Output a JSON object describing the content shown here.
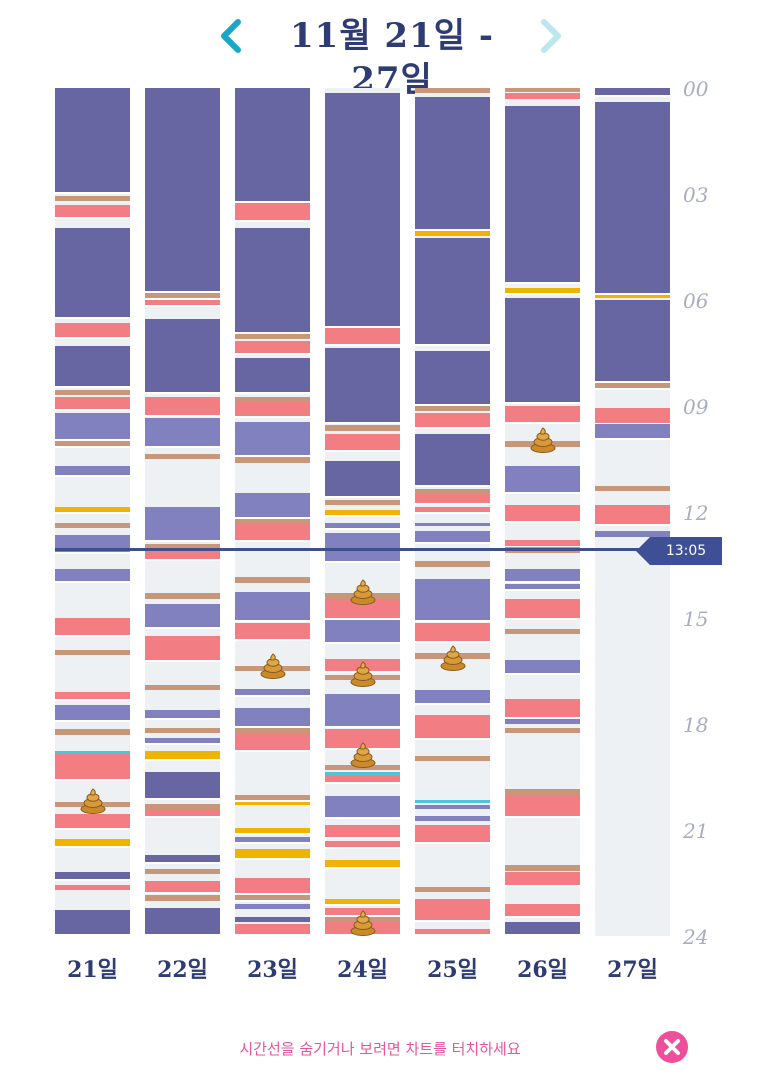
{
  "header": {
    "title": "11월 21일 - 27일",
    "prev_icon": "chevron-left-icon",
    "next_icon": "chevron-right-icon",
    "prev_color": "#19a7c9",
    "next_color": "#bde6ef"
  },
  "colors": {
    "sleep": "#6766a3",
    "light_sleep": "#8281c0",
    "feed": "#f27d82",
    "diaper": "#c8977a",
    "bottle": "#f0b400",
    "bath": "#4fc3d9",
    "empty": "#edf1f4",
    "gap": "#ffffff"
  },
  "hour_labels": [
    "00",
    "03",
    "06",
    "09",
    "12",
    "15",
    "18",
    "21",
    "24"
  ],
  "current_time": "13:05",
  "footer": {
    "hint": "시간선을 숨기거나 보려면 차트를 터치하세요",
    "close_icon": "close-icon"
  },
  "days": [
    {
      "label": "21일",
      "events": [
        [
          "sleep",
          0,
          3
        ],
        [
          "diaper",
          3.05,
          3.2
        ],
        [
          "feed",
          3.3,
          3.7
        ],
        [
          "sleep",
          3.95,
          6.55
        ],
        [
          "feed",
          6.65,
          7.1
        ],
        [
          "sleep",
          7.3,
          8.5
        ],
        [
          "diaper",
          8.55,
          8.7
        ],
        [
          "feed",
          8.75,
          9.15
        ],
        [
          "light_sleep",
          9.2,
          10.0
        ],
        [
          "diaper",
          10.0,
          10.2
        ],
        [
          "light_sleep",
          10.7,
          11.0
        ],
        [
          "bottle",
          11.85,
          12.05
        ],
        [
          "diaper",
          12.3,
          12.45
        ],
        [
          "light_sleep",
          12.65,
          13.2
        ],
        [
          "light_sleep",
          13.6,
          14.0
        ],
        [
          "feed",
          15.0,
          15.55
        ],
        [
          "diaper",
          15.9,
          16.05
        ],
        [
          "feed",
          17.1,
          17.35
        ],
        [
          "light_sleep",
          17.45,
          17.95
        ],
        [
          "diaper",
          18.15,
          18.3
        ],
        [
          "bath",
          18.75,
          18.82
        ],
        [
          "feed",
          18.85,
          19.6
        ],
        [
          "diaper",
          20.2,
          20.35
        ],
        [
          "feed",
          20.55,
          21.0
        ],
        [
          "bottle",
          21.25,
          21.5
        ],
        [
          "sleep",
          22.2,
          22.45
        ],
        [
          "feed",
          22.55,
          22.7
        ],
        [
          "sleep",
          23.25,
          24
        ]
      ],
      "poops": [
        20.2
      ]
    },
    {
      "label": "22일",
      "events": [
        [
          "sleep",
          0,
          5.8
        ],
        [
          "diaper",
          5.8,
          6.0
        ],
        [
          "feed",
          6.0,
          6.2
        ],
        [
          "sleep",
          6.55,
          8.65
        ],
        [
          "feed",
          8.75,
          9.3
        ],
        [
          "light_sleep",
          9.35,
          10.2
        ],
        [
          "diaper",
          10.35,
          10.5
        ],
        [
          "light_sleep",
          11.85,
          12.85
        ],
        [
          "diaper",
          12.9,
          13.1
        ],
        [
          "feed",
          13.1,
          13.4
        ],
        [
          "diaper",
          14.3,
          14.45
        ],
        [
          "light_sleep",
          14.6,
          15.3
        ],
        [
          "feed",
          15.5,
          16.25
        ],
        [
          "diaper",
          16.9,
          17.05
        ],
        [
          "light_sleep",
          17.6,
          17.9
        ],
        [
          "diaper",
          18.1,
          18.25
        ],
        [
          "light_sleep",
          18.4,
          18.6
        ],
        [
          "bottle",
          18.75,
          19.05
        ],
        [
          "sleep",
          19.35,
          20.15
        ],
        [
          "diaper",
          20.25,
          20.4
        ],
        [
          "feed",
          20.4,
          20.65
        ],
        [
          "sleep",
          21.7,
          21.95
        ],
        [
          "diaper",
          22.1,
          22.25
        ],
        [
          "feed",
          22.45,
          22.8
        ],
        [
          "diaper",
          22.85,
          23.0
        ],
        [
          "sleep",
          23.2,
          24
        ]
      ],
      "poops": []
    },
    {
      "label": "23일",
      "events": [
        [
          "sleep",
          0,
          3.25
        ],
        [
          "feed",
          3.25,
          3.8
        ],
        [
          "sleep",
          3.95,
          6.95
        ],
        [
          "diaper",
          6.95,
          7.1
        ],
        [
          "feed",
          7.15,
          7.55
        ],
        [
          "sleep",
          7.65,
          8.65
        ],
        [
          "diaper",
          8.75,
          8.9
        ],
        [
          "feed",
          8.9,
          9.35
        ],
        [
          "light_sleep",
          9.45,
          10.45
        ],
        [
          "diaper",
          10.45,
          10.6
        ],
        [
          "light_sleep",
          11.45,
          12.2
        ],
        [
          "diaper",
          12.2,
          12.35
        ],
        [
          "feed",
          12.35,
          12.85
        ],
        [
          "diaper",
          13.85,
          14.0
        ],
        [
          "light_sleep",
          14.25,
          15.1
        ],
        [
          "feed",
          15.15,
          15.65
        ],
        [
          "diaper",
          16.35,
          16.5
        ],
        [
          "light_sleep",
          17.0,
          17.25
        ],
        [
          "light_sleep",
          17.55,
          18.1
        ],
        [
          "diaper",
          18.1,
          18.25
        ],
        [
          "feed",
          18.25,
          18.8
        ],
        [
          "diaper",
          20.0,
          20.2
        ],
        [
          "bottle",
          20.2,
          20.3
        ],
        [
          "bottle",
          20.95,
          21.15
        ],
        [
          "light_sleep",
          21.2,
          21.4
        ],
        [
          "bottle",
          21.55,
          21.85
        ],
        [
          "feed",
          22.35,
          22.85
        ],
        [
          "diaper",
          22.85,
          23.05
        ],
        [
          "light_sleep",
          23.1,
          23.25
        ],
        [
          "sleep",
          23.45,
          23.6
        ],
        [
          "feed",
          23.65,
          24
        ]
      ],
      "poops": [
        16.4
      ]
    },
    {
      "label": "24일",
      "events": [
        [
          "sleep",
          0.15,
          6.8
        ],
        [
          "feed",
          6.8,
          7.3
        ],
        [
          "sleep",
          7.35,
          9.5
        ],
        [
          "diaper",
          9.55,
          9.7
        ],
        [
          "feed",
          9.8,
          10.3
        ],
        [
          "sleep",
          10.55,
          11.6
        ],
        [
          "diaper",
          11.65,
          11.8
        ],
        [
          "bottle",
          11.95,
          12.15
        ],
        [
          "light_sleep",
          12.3,
          12.5
        ],
        [
          "light_sleep",
          12.6,
          13.45
        ],
        [
          "diaper",
          14.3,
          14.45
        ],
        [
          "feed",
          14.45,
          15.05
        ],
        [
          "light_sleep",
          15.05,
          15.75
        ],
        [
          "feed",
          16.15,
          16.55
        ],
        [
          "diaper",
          16.6,
          16.75
        ],
        [
          "light_sleep",
          17.15,
          18.1
        ],
        [
          "feed",
          18.15,
          18.75
        ],
        [
          "diaper",
          19.15,
          19.3
        ],
        [
          "bath",
          19.35,
          19.45
        ],
        [
          "feed",
          19.45,
          19.7
        ],
        [
          "light_sleep",
          20.05,
          20.7
        ],
        [
          "feed",
          20.85,
          21.25
        ],
        [
          "feed",
          21.3,
          21.55
        ],
        [
          "bottle",
          21.85,
          22.1
        ],
        [
          "bottle",
          22.95,
          23.15
        ],
        [
          "feed",
          23.2,
          23.45
        ],
        [
          "diaper",
          23.45,
          23.6
        ],
        [
          "feed",
          23.6,
          24
        ]
      ],
      "poops": [
        14.3,
        16.6,
        18.9,
        23.65
      ]
    },
    {
      "label": "25일",
      "events": [
        [
          "diaper",
          0,
          0.15
        ],
        [
          "sleep",
          0.25,
          4.05
        ],
        [
          "bottle",
          4.05,
          4.2
        ],
        [
          "sleep",
          4.25,
          7.3
        ],
        [
          "sleep",
          7.45,
          9.0
        ],
        [
          "diaper",
          9.0,
          9.15
        ],
        [
          "feed",
          9.2,
          9.65
        ],
        [
          "sleep",
          9.8,
          11.3
        ],
        [
          "diaper",
          11.35,
          11.5
        ],
        [
          "feed",
          11.5,
          11.8
        ],
        [
          "feed",
          11.85,
          12.05
        ],
        [
          "light_sleep",
          12.3,
          12.4
        ],
        [
          "light_sleep",
          12.55,
          12.9
        ],
        [
          "diaper",
          13.4,
          13.55
        ],
        [
          "light_sleep",
          13.9,
          15.1
        ],
        [
          "feed",
          15.15,
          15.7
        ],
        [
          "diaper",
          16.0,
          16.15
        ],
        [
          "light_sleep",
          17.05,
          17.45
        ],
        [
          "feed",
          17.75,
          18.45
        ],
        [
          "diaper",
          18.9,
          19.05
        ],
        [
          "bath",
          20.15,
          20.25
        ],
        [
          "light_sleep",
          20.3,
          20.4
        ],
        [
          "light_sleep",
          20.6,
          20.75
        ],
        [
          "feed",
          20.85,
          21.4
        ],
        [
          "diaper",
          22.6,
          22.75
        ],
        [
          "feed",
          22.95,
          23.6
        ],
        [
          "feed",
          23.8,
          24
        ]
      ],
      "poops": [
        16.15
      ]
    },
    {
      "label": "26일",
      "events": [
        [
          "diaper",
          0,
          0.1
        ],
        [
          "feed",
          0.15,
          0.3
        ],
        [
          "sleep",
          0.5,
          5.55
        ],
        [
          "bottle",
          5.65,
          5.85
        ],
        [
          "sleep",
          5.95,
          8.95
        ],
        [
          "feed",
          9.0,
          9.5
        ],
        [
          "diaper",
          10.0,
          10.15
        ],
        [
          "light_sleep",
          10.7,
          11.5
        ],
        [
          "feed",
          11.8,
          12.3
        ],
        [
          "feed",
          12.8,
          12.95
        ],
        [
          "diaper",
          13.0,
          13.15
        ],
        [
          "light_sleep",
          13.6,
          14.0
        ],
        [
          "light_sleep",
          14.05,
          14.25
        ],
        [
          "feed",
          14.45,
          15.05
        ],
        [
          "diaper",
          15.3,
          15.45
        ],
        [
          "light_sleep",
          16.2,
          16.6
        ],
        [
          "feed",
          17.3,
          17.85
        ],
        [
          "light_sleep",
          17.85,
          18.0
        ],
        [
          "diaper",
          18.1,
          18.25
        ],
        [
          "diaper",
          19.85,
          20.0
        ],
        [
          "feed",
          20.0,
          20.65
        ],
        [
          "diaper",
          22.0,
          22.15
        ],
        [
          "feed",
          22.2,
          22.6
        ],
        [
          "feed",
          23.1,
          23.5
        ],
        [
          "sleep",
          23.6,
          24
        ]
      ],
      "poops": [
        10.0
      ]
    },
    {
      "label": "27일",
      "events": [
        [
          "sleep",
          0,
          0.25
        ],
        [
          "sleep",
          0.4,
          5.85
        ],
        [
          "bottle",
          5.85,
          5.95
        ],
        [
          "sleep",
          6.0,
          8.35
        ],
        [
          "diaper",
          8.35,
          8.55
        ],
        [
          "feed",
          9.05,
          9.55
        ],
        [
          "light_sleep",
          9.5,
          9.95
        ],
        [
          "diaper",
          11.25,
          11.4
        ],
        [
          "feed",
          11.8,
          12.4
        ],
        [
          "light_sleep",
          12.55,
          12.7
        ]
      ],
      "poops": []
    }
  ]
}
